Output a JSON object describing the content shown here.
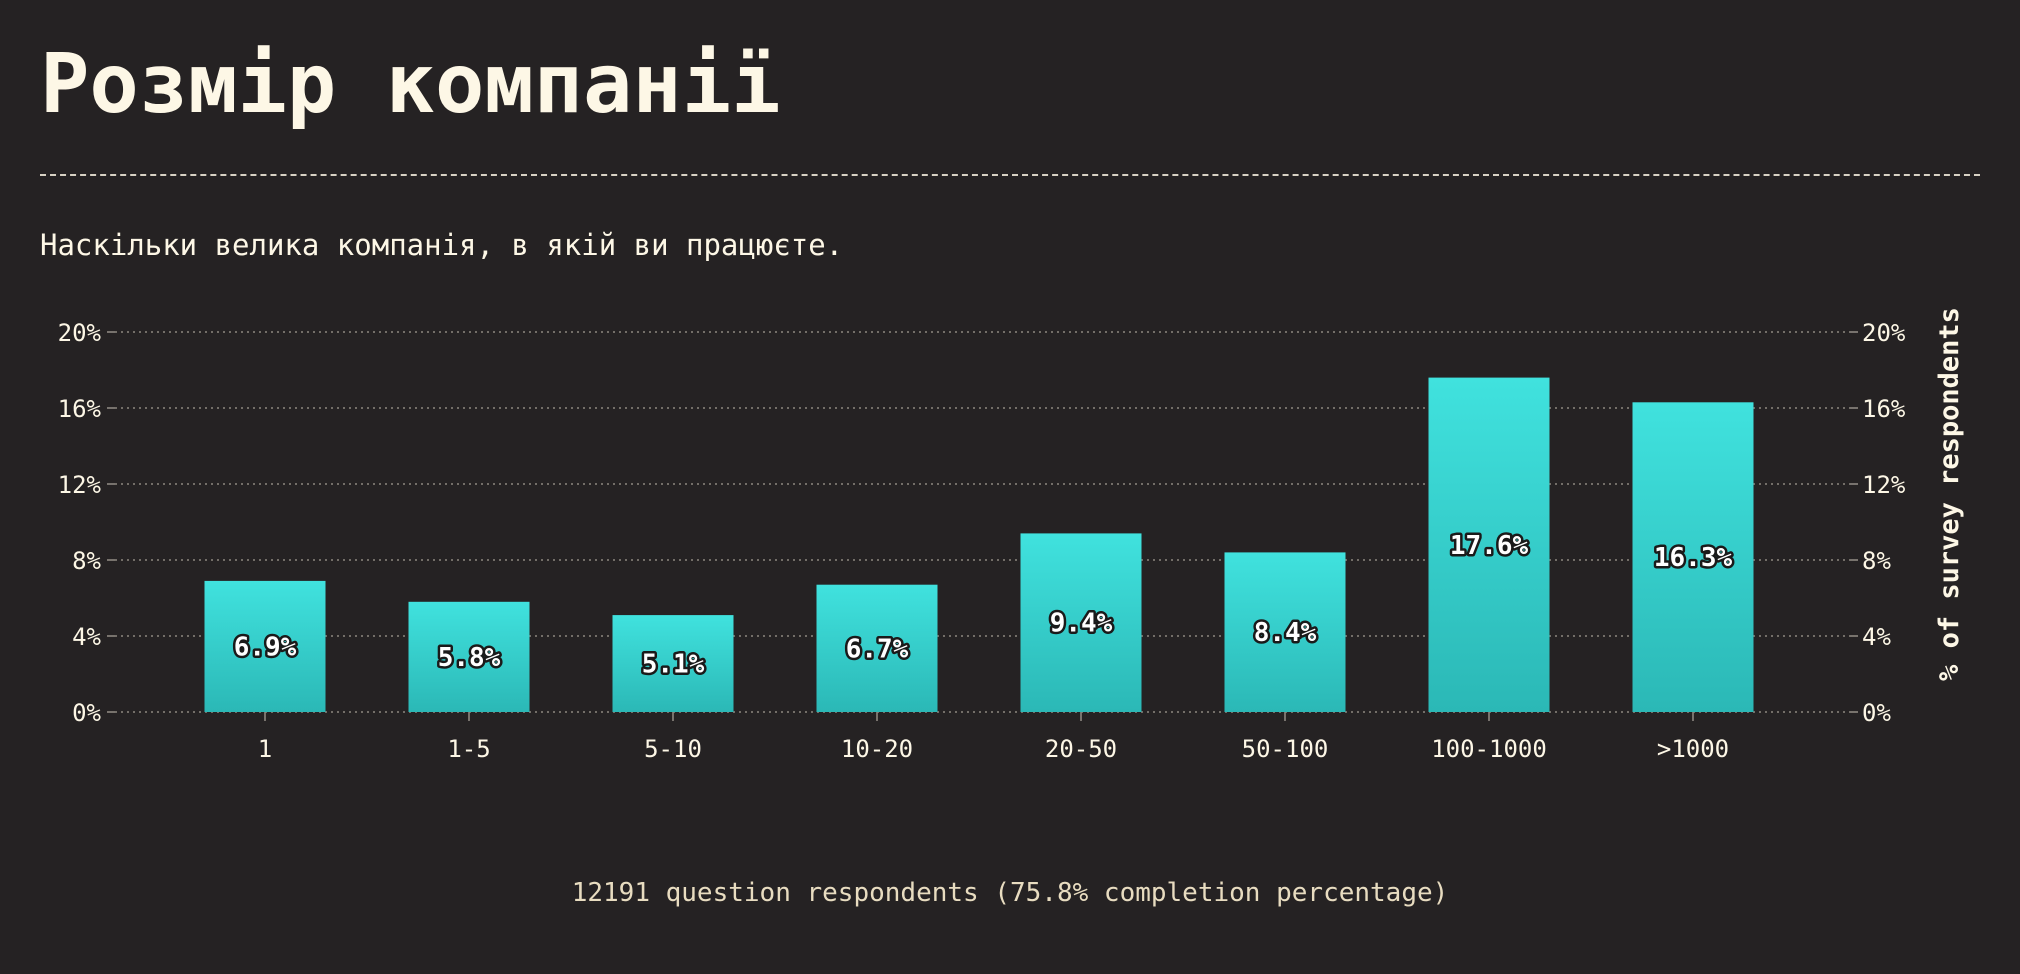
{
  "header": {
    "title": "Розмір компанії",
    "subtitle": "Наскільки велика компанія, в якій ви працюєте."
  },
  "footer": {
    "note": "12191 question respondents (75.8% completion percentage)"
  },
  "colors": {
    "background": "#252223",
    "bar_top": "#40e2de",
    "bar_bottom": "#2bb8b6",
    "text": "#fdf7e6",
    "muted_text": "#e8dcc0",
    "grid": "#8d8880"
  },
  "chart_data": {
    "type": "bar",
    "categories": [
      "1",
      "1-5",
      "5-10",
      "10-20",
      "20-50",
      "50-100",
      "100-1000",
      ">1000"
    ],
    "values": [
      6.9,
      5.8,
      5.1,
      6.7,
      9.4,
      8.4,
      17.6,
      16.3
    ],
    "data_labels": [
      "6.9%",
      "5.8%",
      "5.1%",
      "6.7%",
      "9.4%",
      "8.4%",
      "17.6%",
      "16.3%"
    ],
    "ylim": [
      0,
      20
    ],
    "yticks": [
      0,
      4,
      8,
      12,
      16,
      20
    ],
    "ytick_labels": [
      "0%",
      "4%",
      "8%",
      "12%",
      "16%",
      "20%"
    ],
    "ylabel": "% of survey respondents",
    "grid": true
  }
}
